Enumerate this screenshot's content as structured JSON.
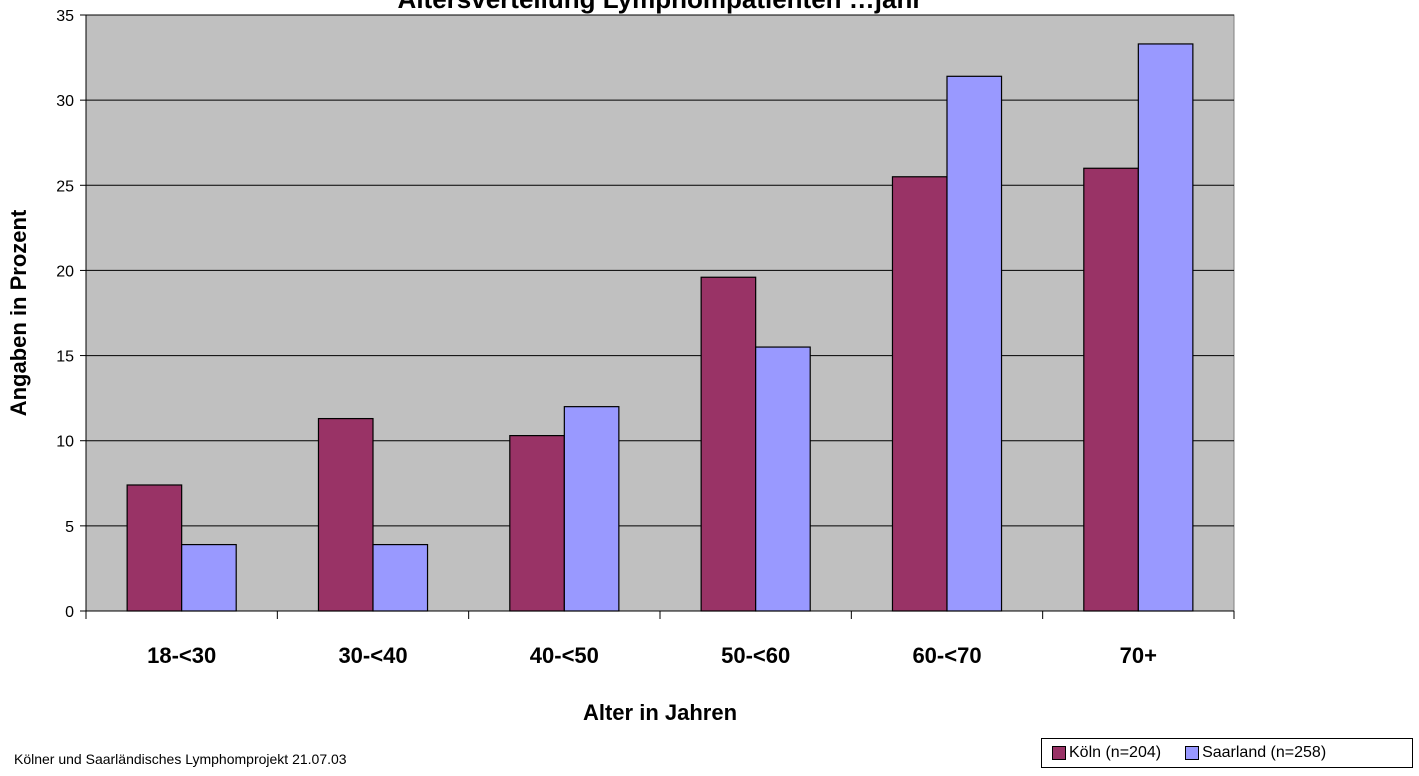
{
  "chart_data": {
    "type": "bar",
    "title": "Altersverteilung Lymphompatienten …jahr",
    "xlabel": "Alter in Jahren",
    "ylabel": "Angaben in Prozent",
    "categories": [
      "18-<30",
      "30-<40",
      "40-<50",
      "50-<60",
      "60-<70",
      "70+"
    ],
    "series": [
      {
        "name": "Köln (n=204)",
        "values": [
          7.4,
          11.3,
          10.3,
          19.6,
          25.5,
          26.0
        ],
        "color": "#993366"
      },
      {
        "name": "Saarland (n=258)",
        "values": [
          3.9,
          3.9,
          12.0,
          15.5,
          31.4,
          33.3
        ],
        "color": "#9999ff"
      }
    ],
    "ylim": [
      0,
      35
    ],
    "yticks": [
      0,
      5,
      10,
      15,
      20,
      25,
      30,
      35
    ],
    "grid": true,
    "plot_background": "#c0c0c0",
    "legend_position": "bottom-right"
  },
  "footer": {
    "note": "Kölner und Saarländisches Lymphomprojekt 21.07.03"
  }
}
